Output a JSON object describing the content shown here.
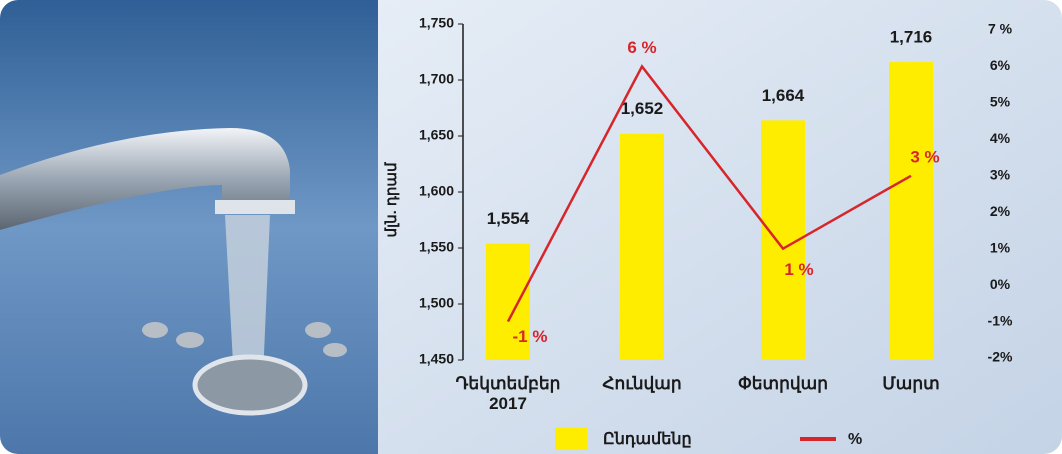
{
  "chart_data": {
    "type": "bar_line",
    "y_label": "մլն. դրամ",
    "categories": [
      "Դեկտեմբեր 2017",
      "Հունվար",
      "Փետրվար",
      "Մարտ"
    ],
    "series": [
      {
        "name": "Ընդամենը",
        "type": "bar",
        "color": "#ffed00",
        "values": [
          1554,
          1652,
          1664,
          1716
        ],
        "value_labels": [
          "1,554",
          "1,652",
          "1,664",
          "1,716"
        ]
      },
      {
        "name": "%",
        "type": "line",
        "axis": "y2",
        "color": "#d7262b",
        "values": [
          -1,
          6,
          1,
          3
        ],
        "value_labels": [
          "-1 %",
          "6 %",
          "1 %",
          "3 %"
        ]
      }
    ],
    "ylim": [
      1450,
      1750
    ],
    "yticks": [
      {
        "value": 1450,
        "label": "1,450"
      },
      {
        "value": 1500,
        "label": "1,500"
      },
      {
        "value": 1550,
        "label": "1,550"
      },
      {
        "value": 1600,
        "label": "1,600"
      },
      {
        "value": 1650,
        "label": "1,650"
      },
      {
        "value": 1700,
        "label": "1,700"
      },
      {
        "value": 1750,
        "label": "1,750"
      }
    ],
    "y2lim": [
      -2,
      7
    ],
    "y2ticks": [
      {
        "value": -2,
        "label": "-2%"
      },
      {
        "value": -1,
        "label": "-1%"
      },
      {
        "value": 0,
        "label": "0%"
      },
      {
        "value": 1,
        "label": "1%"
      },
      {
        "value": 2,
        "label": "2%"
      },
      {
        "value": 3,
        "label": "3%"
      },
      {
        "value": 4,
        "label": "4%"
      },
      {
        "value": 5,
        "label": "5%"
      },
      {
        "value": 6,
        "label": "6%"
      },
      {
        "value": 7,
        "label": "7 %"
      }
    ],
    "legend": "bottom"
  }
}
